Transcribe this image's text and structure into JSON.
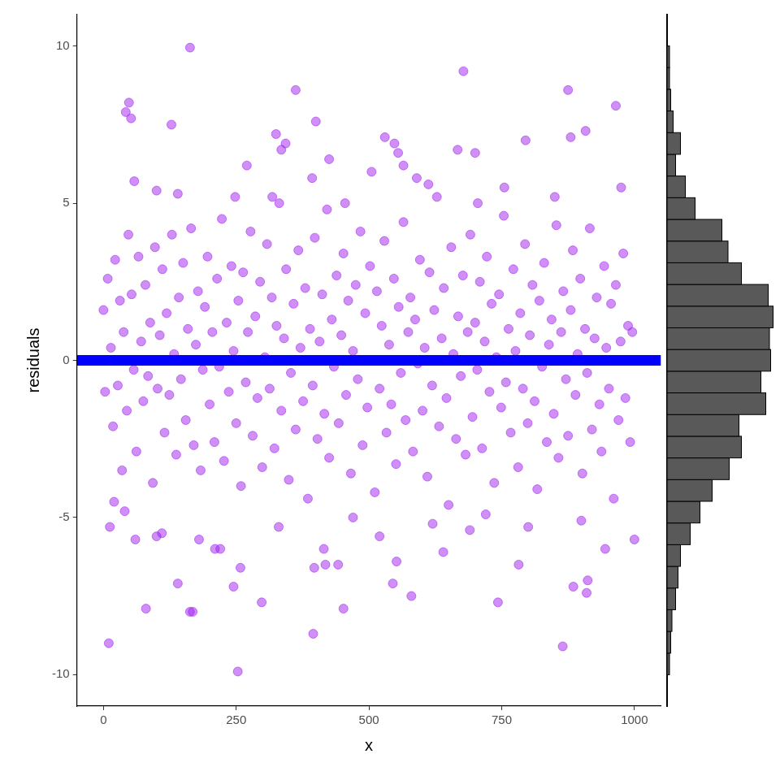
{
  "chart_data": [
    {
      "type": "scatter",
      "x_label": "x",
      "y_label": "residuals",
      "xlim": [
        -50,
        1050
      ],
      "xticks": [
        0,
        250,
        500,
        750,
        1000
      ],
      "ylim": [
        -11,
        11
      ],
      "yticks": [
        -10,
        -5,
        0,
        5,
        10
      ],
      "grid": false,
      "series": [
        {
          "type": "scatter",
          "color": "#a020f0",
          "marker": "circle",
          "x": [
            0,
            3,
            8,
            14,
            18,
            22,
            27,
            31,
            35,
            38,
            44,
            47,
            53,
            57,
            62,
            66,
            71,
            75,
            79,
            84,
            88,
            93,
            97,
            102,
            106,
            111,
            115,
            119,
            124,
            129,
            133,
            137,
            142,
            146,
            150,
            155,
            159,
            165,
            170,
            174,
            178,
            183,
            187,
            191,
            196,
            200,
            205,
            209,
            214,
            218,
            223,
            227,
            232,
            236,
            241,
            245,
            250,
            254,
            259,
            263,
            268,
            272,
            277,
            281,
            286,
            290,
            295,
            299,
            304,
            308,
            313,
            317,
            322,
            326,
            331,
            335,
            340,
            344,
            349,
            353,
            358,
            362,
            367,
            371,
            376,
            380,
            385,
            389,
            394,
            398,
            403,
            407,
            412,
            416,
            421,
            425,
            430,
            434,
            439,
            443,
            448,
            452,
            457,
            461,
            466,
            470,
            475,
            479,
            484,
            488,
            493,
            497,
            502,
            506,
            511,
            515,
            520,
            524,
            529,
            533,
            538,
            542,
            547,
            551,
            556,
            560,
            565,
            569,
            574,
            578,
            583,
            587,
            592,
            596,
            601,
            605,
            610,
            614,
            619,
            623,
            628,
            632,
            637,
            641,
            646,
            650,
            655,
            659,
            664,
            668,
            673,
            677,
            682,
            686,
            691,
            695,
            700,
            704,
            709,
            713,
            718,
            722,
            727,
            731,
            736,
            740,
            745,
            749,
            754,
            758,
            763,
            767,
            772,
            776,
            781,
            785,
            790,
            794,
            799,
            803,
            808,
            812,
            817,
            821,
            826,
            830,
            835,
            839,
            844,
            848,
            853,
            857,
            862,
            866,
            871,
            875,
            880,
            884,
            889,
            893,
            898,
            902,
            907,
            911,
            916,
            920,
            925,
            929,
            934,
            938,
            943,
            947,
            952,
            956,
            961,
            965,
            970,
            974,
            979,
            983,
            988,
            992,
            996,
            163,
            678,
            362,
            875,
            965,
            48,
            42,
            52,
            128,
            400,
            325,
            530,
            880,
            908,
            270,
            335,
            343,
            425,
            548,
            555,
            667,
            700,
            795,
            58,
            100,
            140,
            248,
            318,
            393,
            455,
            505,
            565,
            590,
            612,
            705,
            755,
            975,
            850,
            10,
            253,
            395,
            865,
            163,
            168,
            80,
            452,
            580,
            743,
            298,
            140,
            245,
            545,
            885,
            910,
            912,
            210,
            220,
            258,
            397,
            415,
            418,
            442,
            552,
            640,
            782,
            945,
            1000,
            60,
            100,
            110,
            180,
            12,
            20,
            40,
            330,
            470,
            620,
            690,
            800,
            900,
            720,
            520
          ],
          "values": [
            1.6,
            -1.0,
            2.6,
            0.4,
            -2.1,
            3.2,
            -0.8,
            1.9,
            -3.5,
            0.9,
            -1.6,
            4.0,
            2.1,
            -0.3,
            -2.9,
            3.3,
            0.6,
            -1.3,
            2.4,
            -0.5,
            1.2,
            -3.9,
            3.6,
            -0.9,
            0.8,
            2.9,
            -2.3,
            1.5,
            -1.1,
            4.0,
            0.2,
            -3.0,
            2.0,
            -0.6,
            3.1,
            -1.9,
            1.0,
            4.2,
            -2.7,
            0.5,
            2.2,
            -3.5,
            -0.3,
            1.7,
            3.3,
            -1.4,
            0.9,
            -2.6,
            2.6,
            -0.2,
            4.5,
            -3.2,
            1.2,
            -1.0,
            3.0,
            0.3,
            -2.0,
            1.9,
            -4.0,
            2.8,
            -0.7,
            0.9,
            4.1,
            -2.4,
            1.4,
            -1.2,
            2.5,
            -3.4,
            0.1,
            3.7,
            -0.9,
            2.0,
            -2.8,
            1.1,
            5.0,
            -1.6,
            0.7,
            2.9,
            -3.8,
            -0.4,
            1.8,
            -2.2,
            3.5,
            0.4,
            -1.3,
            2.3,
            -4.4,
            1.0,
            -0.8,
            3.9,
            -2.5,
            0.6,
            2.1,
            -1.7,
            4.8,
            -3.1,
            1.3,
            -0.2,
            2.7,
            -2.0,
            0.8,
            3.4,
            -1.1,
            1.9,
            -3.6,
            0.3,
            2.4,
            -0.6,
            4.1,
            -2.7,
            1.5,
            -1.5,
            3.0,
            0.0,
            -4.2,
            2.2,
            -0.9,
            1.1,
            3.8,
            -2.3,
            0.5,
            -1.4,
            2.6,
            -3.3,
            1.7,
            -0.4,
            4.4,
            -1.9,
            0.9,
            2.0,
            -2.9,
            1.3,
            -0.1,
            3.2,
            -1.6,
            0.4,
            -3.7,
            2.8,
            -0.8,
            1.6,
            5.2,
            -2.1,
            0.7,
            2.3,
            -1.2,
            -4.6,
            3.6,
            0.2,
            -2.5,
            1.4,
            -0.5,
            2.7,
            -3.0,
            0.9,
            4.0,
            -1.8,
            1.2,
            -0.3,
            2.5,
            -2.8,
            0.6,
            3.3,
            -1.0,
            1.8,
            -3.9,
            0.1,
            2.1,
            -1.5,
            4.6,
            -0.7,
            1.0,
            -2.3,
            2.9,
            0.3,
            -3.4,
            1.5,
            -0.9,
            3.7,
            -2.0,
            0.8,
            2.4,
            -1.3,
            -4.1,
            1.9,
            -0.2,
            3.1,
            -2.6,
            0.5,
            1.3,
            -1.7,
            4.3,
            -3.1,
            0.9,
            2.2,
            -0.6,
            -2.4,
            1.6,
            3.5,
            -1.1,
            0.2,
            2.6,
            -3.6,
            1.0,
            -0.4,
            4.2,
            -2.2,
            0.7,
            2.0,
            -1.4,
            -2.9,
            3.0,
            0.4,
            -0.9,
            1.8,
            -4.4,
            2.4,
            -1.9,
            0.6,
            3.4,
            -1.2,
            1.1,
            -2.6,
            0.9,
            9.95,
            9.2,
            8.6,
            8.6,
            8.1,
            8.2,
            7.9,
            7.7,
            7.5,
            7.6,
            7.2,
            7.1,
            7.1,
            7.3,
            6.2,
            6.7,
            6.9,
            6.4,
            6.9,
            6.6,
            6.7,
            6.6,
            7.0,
            5.7,
            5.4,
            5.3,
            5.2,
            5.2,
            5.8,
            5.0,
            6.0,
            6.2,
            5.8,
            5.6,
            5.0,
            5.5,
            5.5,
            5.2,
            -9.0,
            -9.9,
            -8.7,
            -9.1,
            -8.0,
            -8.0,
            -7.9,
            -7.9,
            -7.5,
            -7.7,
            -7.7,
            -7.1,
            -7.2,
            -7.1,
            -7.2,
            -7.4,
            -7.0,
            -6.0,
            -6.0,
            -6.6,
            -6.6,
            -6.0,
            -6.5,
            -6.5,
            -6.4,
            -6.1,
            -6.5,
            -6.0,
            -5.7,
            -5.7,
            -5.6,
            -5.5,
            -5.7,
            -5.3,
            -4.5,
            -4.8,
            -5.3,
            -5.0,
            -5.2,
            -5.4,
            -5.3,
            -5.1,
            -4.9,
            -5.6
          ]
        },
        {
          "type": "line",
          "color": "#0000ff",
          "line_style": "solid",
          "x": [
            -50,
            1050
          ],
          "values": [
            0,
            0
          ]
        }
      ]
    },
    {
      "type": "histogram",
      "orientation": "horizontal",
      "tick_labels": false,
      "grid": false,
      "color": "#595959",
      "xlim": [
        0,
        90
      ],
      "ylim": [
        -11,
        11
      ],
      "bins": [
        -10.005,
        -9.315,
        -8.625,
        -7.935,
        -7.245,
        -6.555,
        -5.865,
        -5.175,
        -4.485,
        -3.795,
        -3.105,
        -2.415,
        -1.725,
        -1.035,
        -0.345,
        0.345,
        1.035,
        1.725,
        2.415,
        3.105,
        3.795,
        4.485,
        5.175,
        5.865,
        6.555,
        7.245,
        7.935,
        8.625,
        9.315,
        10.005
      ],
      "counts": [
        2,
        3,
        4,
        7,
        9,
        11,
        19,
        27,
        37,
        51,
        61,
        59,
        81,
        77,
        85,
        84,
        87,
        83,
        61,
        50,
        45,
        23,
        15,
        7,
        11,
        5,
        3,
        2,
        2
      ]
    }
  ]
}
